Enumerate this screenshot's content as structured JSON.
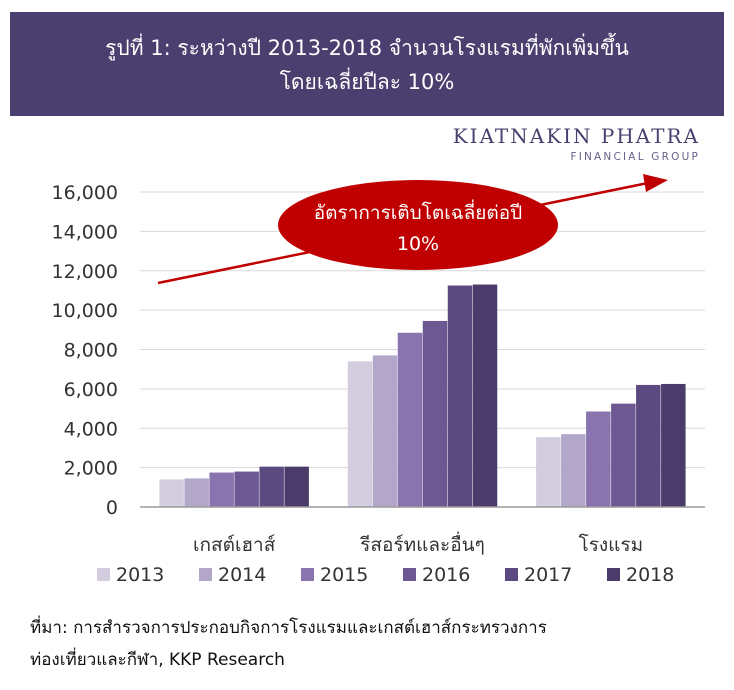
{
  "title": {
    "line1": "รูปที่ 1: ระหว่างปี 2013-2018 จำนวนโรงแรมที่พักเพิ่มขึ้น",
    "line2": "โดยเฉลี่ยปีละ 10%"
  },
  "brand": {
    "name": "KIATNAKIN PHATRA",
    "tagline": "FINANCIAL GROUP"
  },
  "annotation": {
    "line1": "อัตราการเติบโตเฉลี่ยต่อปี",
    "line2": "10%",
    "bubble_color": "#c00000",
    "arrow_color": "#c00000"
  },
  "source": {
    "line1": "ที่มา: การสำรวจการประกอบกิจการโรงแรมและเกสต์เฮาส์กระทรวงการ",
    "line2": "ท่องเที่ยวและกีฬา, KKP Research"
  },
  "chart_data": {
    "type": "bar",
    "categories": [
      "เกสต์เฮาส์",
      "รีสอร์ทและอื่นๆ",
      "โรงแรม"
    ],
    "series": [
      {
        "name": "2013",
        "color": "#d4cde0",
        "values": [
          1400,
          7400,
          3550
        ]
      },
      {
        "name": "2014",
        "color": "#b2a6c9",
        "values": [
          1450,
          7700,
          3700
        ]
      },
      {
        "name": "2015",
        "color": "#8a74b0",
        "values": [
          1750,
          8850,
          4850
        ]
      },
      {
        "name": "2016",
        "color": "#6d5894",
        "values": [
          1800,
          9450,
          5250
        ]
      },
      {
        "name": "2017",
        "color": "#5b4a80",
        "values": [
          2050,
          11250,
          6200
        ]
      },
      {
        "name": "2018",
        "color": "#4b3b6a",
        "values": [
          2050,
          11300,
          6250
        ]
      }
    ],
    "yticks": [
      "0",
      "2,000",
      "4,000",
      "6,000",
      "8,000",
      "10,000",
      "12,000",
      "14,000",
      "16,000"
    ],
    "ylim": [
      0,
      16000
    ],
    "grid": true,
    "legend_position": "bottom"
  }
}
